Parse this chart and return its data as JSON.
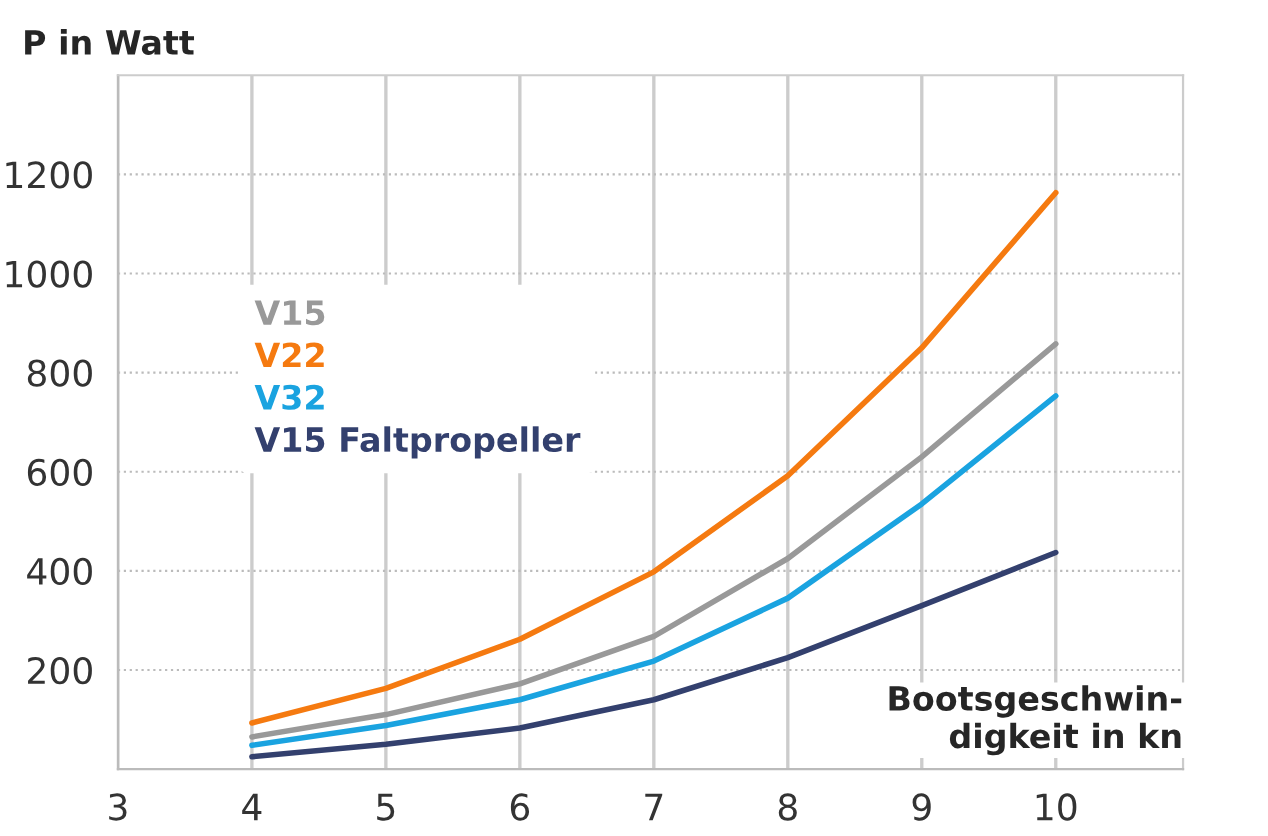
{
  "chart_data": {
    "type": "line",
    "xlabel": "Bootsgeschwin-\ndigkeit in kn",
    "ylabel": "P in Watt",
    "x": [
      4,
      5,
      6,
      7,
      8,
      9,
      10
    ],
    "series": [
      {
        "name": "V15",
        "color": "#999999",
        "values": [
          65,
          110,
          172,
          268,
          425,
          630,
          858
        ]
      },
      {
        "name": "V22",
        "color": "#f57a10",
        "values": [
          93,
          163,
          262,
          398,
          592,
          850,
          1163
        ]
      },
      {
        "name": "V32",
        "color": "#1aa3e0",
        "values": [
          48,
          88,
          140,
          218,
          345,
          535,
          753
        ]
      },
      {
        "name": "V15 Faltpropeller",
        "color": "#33406e",
        "values": [
          25,
          50,
          83,
          140,
          225,
          330,
          437
        ]
      }
    ],
    "xlim": [
      3,
      10.95
    ],
    "ylim": [
      0,
      1400
    ],
    "xticks": [
      3,
      4,
      5,
      6,
      7,
      8,
      9,
      10
    ],
    "yticks": [
      200,
      400,
      600,
      800,
      1000,
      1200
    ],
    "grid": true,
    "legend": "top left",
    "marker": "none",
    "line_style": "solid"
  }
}
